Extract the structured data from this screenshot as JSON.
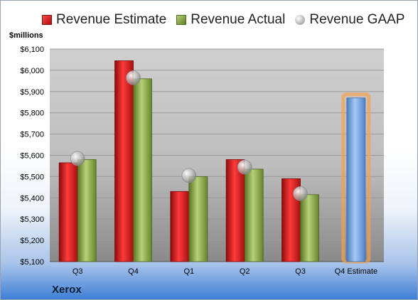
{
  "chart_data": {
    "type": "bar",
    "units_label": "$millions",
    "company": "Xerox",
    "categories": [
      "Q3",
      "Q4",
      "Q1",
      "Q2",
      "Q3",
      "Q4 Estimate"
    ],
    "series": [
      {
        "name": "Revenue Estimate",
        "values": [
          5565,
          6045,
          5430,
          5580,
          5490,
          null
        ],
        "color": "#d21f1f"
      },
      {
        "name": "Revenue Actual",
        "values": [
          5580,
          5960,
          5500,
          5535,
          5415,
          null
        ],
        "color": "#8aa844"
      },
      {
        "name": "Revenue GAAP",
        "values": [
          5585,
          5965,
          5505,
          5545,
          5420,
          null
        ],
        "color": "#b5b5b5"
      },
      {
        "name": "Q4 Estimate",
        "values": [
          null,
          null,
          null,
          null,
          null,
          5870
        ],
        "color": "#6b9bd8",
        "highlight": "#f5a04a"
      }
    ],
    "ylim": [
      5100,
      6100
    ],
    "yticks": [
      "$5,100",
      "$5,200",
      "$5,300",
      "$5,400",
      "$5,500",
      "$5,600",
      "$5,700",
      "$5,800",
      "$5,900",
      "$6,000",
      "$6,100"
    ],
    "grid": true,
    "legend_position": "top"
  }
}
